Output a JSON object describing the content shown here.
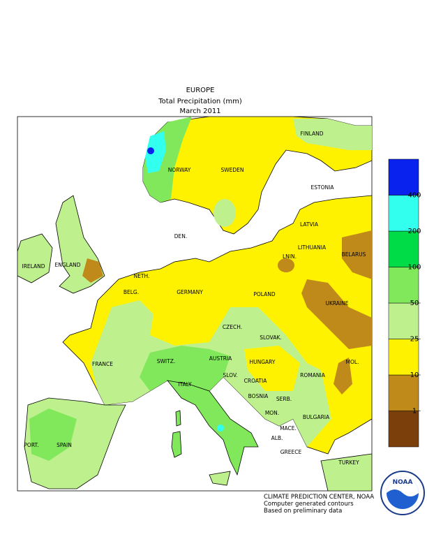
{
  "header": {
    "region": "EUROPE",
    "title": "Total Precipitation (mm)",
    "period": "March 2011"
  },
  "labels": [
    "NORWAY",
    "SWEDEN",
    "FINLAND",
    "ESTONIA",
    "LATVIA",
    "LITHUANIA",
    "DEN.",
    "LNIN.",
    "BELARUS",
    "IRELAND",
    "ENGLAND",
    "NETH.",
    "GERMANY",
    "POLAND",
    "BELG.",
    "CZECH.",
    "UKRAINE",
    "SLOVAK.",
    "FRANCE",
    "SWITZ.",
    "AUSTRIA",
    "HUNGARY",
    "MOL.",
    "ROMANIA",
    "SLOV.",
    "CROATIA",
    "ITALY",
    "BOSNIA",
    "SERB.",
    "BULGARIA",
    "MON.",
    "MACE.",
    "ALB.",
    "GREECE",
    "PORT.",
    "SPAIN",
    "TURKEY"
  ],
  "legend": {
    "colors": [
      "#7a3f0a",
      "#c08a1a",
      "#fff200",
      "#bff08e",
      "#80e85a",
      "#00dc48",
      "#33ffee",
      "#0a22ee"
    ],
    "ticks": [
      1,
      10,
      25,
      50,
      100,
      200,
      400
    ]
  },
  "footer": [
    "CLIMATE PREDICTION CENTER, NOAA",
    "Computer generated contours",
    "Based on preliminary data"
  ],
  "logo": "NOAA"
}
